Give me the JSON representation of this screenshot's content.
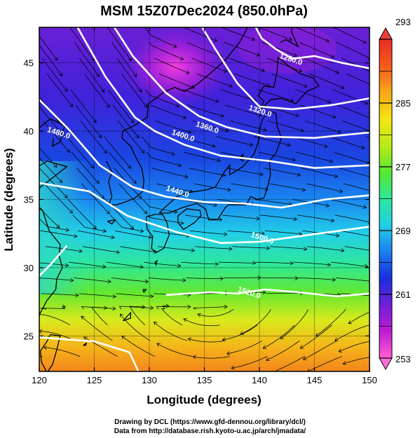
{
  "chart_data": {
    "type": "heatmap",
    "title": "MSM 15Z07Dec2024 (850.0hPa)",
    "xlabel": "Longitude (degrees)",
    "ylabel": "Latitude  (degrees)",
    "xlim": [
      120,
      150
    ],
    "ylim": [
      22.4,
      47.6
    ],
    "x_ticks": [
      120,
      125,
      130,
      135,
      140,
      145,
      150
    ],
    "y_ticks": [
      25,
      30,
      35,
      40,
      45
    ],
    "grid": true,
    "colorbar": {
      "range": [
        253,
        293
      ],
      "ticks": [
        253,
        261,
        269,
        277,
        285,
        293
      ],
      "colors": [
        "#ff5fd0",
        "#c21bd6",
        "#6f20d8",
        "#1a2ee0",
        "#1a7ff0",
        "#20d0e8",
        "#2ee89a",
        "#55e830",
        "#b8ec18",
        "#f5e60f",
        "#f8a818",
        "#f55a1a",
        "#e82c24"
      ]
    },
    "contours": [
      {
        "label": "1280.0",
        "lon": 142.8,
        "lat": 45.1
      },
      {
        "label": "1320.0",
        "lon": 140.0,
        "lat": 41.3
      },
      {
        "label": "1360.0",
        "lon": 135.2,
        "lat": 40.1
      },
      {
        "label": "1400.0",
        "lon": 133.0,
        "lat": 39.5
      },
      {
        "label": "1440.0",
        "lon": 132.5,
        "lat": 35.4
      },
      {
        "label": "1480.0",
        "lon": 121.7,
        "lat": 39.7
      },
      {
        "label": "1500.0",
        "lon": 140.2,
        "lat": 32.0
      },
      {
        "label": "1520.0",
        "lon": 139.0,
        "lat": 28.0
      }
    ]
  },
  "footer": {
    "line1": "Drawing by DCL (https://www.gfd-dennou.org/library/dcl/)",
    "line2": "Data from http://database.rish.kyoto-u.ac.jp/arch/jmadata/"
  }
}
